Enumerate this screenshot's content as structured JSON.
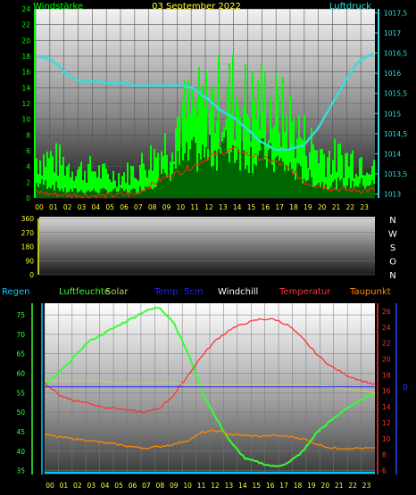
{
  "date": "03 September 2022",
  "colors": {
    "wind": "#00ff00",
    "pressure": "#33dddd",
    "tick_yellow": "#ffff33",
    "regen": "#00ccff",
    "humidity": "#33ff33",
    "solar": "#cccc66",
    "soiltemp": "#2222ff",
    "windchill": "#ffffff",
    "temp": "#ff3333",
    "dew": "#ff8800"
  },
  "chart_data": [
    {
      "type": "bar",
      "title": "03 September 2022",
      "left_label": "Windstärke",
      "right_label": "Luftdruck",
      "x_ticks": [
        "00",
        "01",
        "02",
        "03",
        "04",
        "05",
        "06",
        "07",
        "08",
        "09",
        "10",
        "11",
        "12",
        "13",
        "14",
        "15",
        "16",
        "17",
        "18",
        "19",
        "20",
        "21",
        "22",
        "23"
      ],
      "y_left_ticks": [
        "0",
        "2",
        "4",
        "6",
        "8",
        "10",
        "12",
        "14",
        "16",
        "18",
        "20",
        "22",
        "24"
      ],
      "y_left_lim": [
        0,
        24
      ],
      "y_right_ticks": [
        "1013",
        "1013,5",
        "1014",
        "1014,5",
        "1015",
        "1015,5",
        "1016",
        "1016,5",
        "1017",
        "1017,5"
      ],
      "y_right_lim": [
        1012.9,
        1017.6
      ],
      "wind_gust_hourly": [
        7,
        7,
        6,
        5,
        5,
        4,
        4,
        5,
        7,
        9,
        14,
        15,
        16,
        17,
        18,
        16,
        17,
        15,
        13,
        10,
        8,
        7,
        7,
        7
      ],
      "wind_speed_hourly": [
        2,
        2,
        1,
        1,
        1,
        1,
        1,
        1,
        2,
        3,
        5,
        6,
        6,
        7,
        7,
        6,
        6,
        5,
        4,
        3,
        2,
        2,
        2,
        2
      ],
      "temp_scaled_hourly": [
        0.8,
        0.5,
        0.4,
        0.4,
        0.3,
        0.3,
        0.4,
        0.5,
        1.5,
        2.5,
        3.2,
        4,
        5,
        5.8,
        6.2,
        5.5,
        5,
        4.5,
        3.5,
        2,
        1.5,
        1.2,
        1,
        1
      ],
      "pressure_hourly": [
        1016.4,
        1016.35,
        1016.0,
        1015.8,
        1015.8,
        1015.75,
        1015.75,
        1015.7,
        1015.7,
        1015.7,
        1015.7,
        1015.65,
        1015.4,
        1015.1,
        1014.9,
        1014.6,
        1014.3,
        1014.1,
        1014.1,
        1014.2,
        1014.6,
        1015.2,
        1015.8,
        1016.3,
        1016.5
      ]
    },
    {
      "type": "line",
      "title": "",
      "y_left_ticks": [
        "0",
        "90",
        "180",
        "270",
        "360"
      ],
      "y_left_lim": [
        0,
        360
      ],
      "y_right_ticks": [
        "N",
        "W",
        "S",
        "O",
        "N"
      ],
      "values": []
    },
    {
      "type": "line",
      "legend": [
        "Regen",
        "Luftfeuchte",
        "Solar",
        "Temp. 5cm",
        "Windchill",
        "Temperatur",
        "Taupunkt"
      ],
      "x_ticks": [
        "00",
        "01",
        "02",
        "03",
        "04",
        "05",
        "06",
        "07",
        "08",
        "09",
        "10",
        "11",
        "12",
        "13",
        "14",
        "15",
        "16",
        "17",
        "18",
        "19",
        "20",
        "21",
        "22",
        "23"
      ],
      "y_left_ticks": [
        "35",
        "40",
        "45",
        "50",
        "55",
        "60",
        "65",
        "70",
        "75"
      ],
      "y_left_lim": [
        34,
        78
      ],
      "y_right_ticks": [
        "6",
        "8",
        "10",
        "12",
        "14",
        "16",
        "18",
        "20",
        "22",
        "24",
        "26"
      ],
      "y_right_lim": [
        5.5,
        27
      ],
      "blue_axis_label": "0",
      "series": [
        {
          "name": "Luftfeuchte",
          "values": [
            57,
            60,
            64,
            68,
            70,
            72,
            74,
            76,
            77,
            73,
            65,
            55,
            48,
            42,
            38,
            37,
            36,
            37,
            40,
            45,
            48,
            51,
            53,
            55
          ]
        },
        {
          "name": "Temperatur",
          "values": [
            17,
            15.5,
            14.8,
            14.5,
            14,
            13.8,
            13.5,
            13.3,
            13.8,
            15.5,
            18,
            20.5,
            22.5,
            23.8,
            24.5,
            25,
            25,
            24.2,
            22.5,
            20.5,
            19,
            18,
            17.3,
            16.8
          ]
        },
        {
          "name": "Taupunkt",
          "values": [
            10.5,
            10.2,
            10,
            9.8,
            9.5,
            9.3,
            9,
            8.8,
            9,
            9.3,
            9.8,
            10.8,
            11,
            10.5,
            10.4,
            10.3,
            10.4,
            10.3,
            10,
            9.3,
            8.8,
            8.8,
            8.8,
            8.8
          ]
        },
        {
          "name": "Solar",
          "values": [
            58,
            58,
            58,
            58,
            58,
            57.5,
            57.5,
            57.5,
            57.5,
            57.5,
            57,
            57,
            57,
            57,
            57,
            57,
            57,
            57,
            57,
            57,
            56.5,
            56,
            55.5,
            55
          ]
        },
        {
          "name": "Temp. 5cm",
          "values": [
            16.5,
            16.5,
            16.5,
            16.5,
            16.5,
            16.5,
            16.5,
            16.5,
            16.5,
            16.5,
            16.5,
            16.5,
            16.5,
            16.5,
            16.5,
            16.5,
            16.5,
            16.5,
            16.5,
            16.5,
            16.5,
            16.5,
            16.5,
            16.5
          ]
        },
        {
          "name": "Regen",
          "values": [
            0,
            0,
            0,
            0,
            0,
            0,
            0,
            0,
            0,
            0,
            0,
            0,
            0,
            0,
            0,
            0,
            0,
            0,
            0,
            0,
            0,
            0,
            0,
            0
          ]
        }
      ]
    }
  ]
}
